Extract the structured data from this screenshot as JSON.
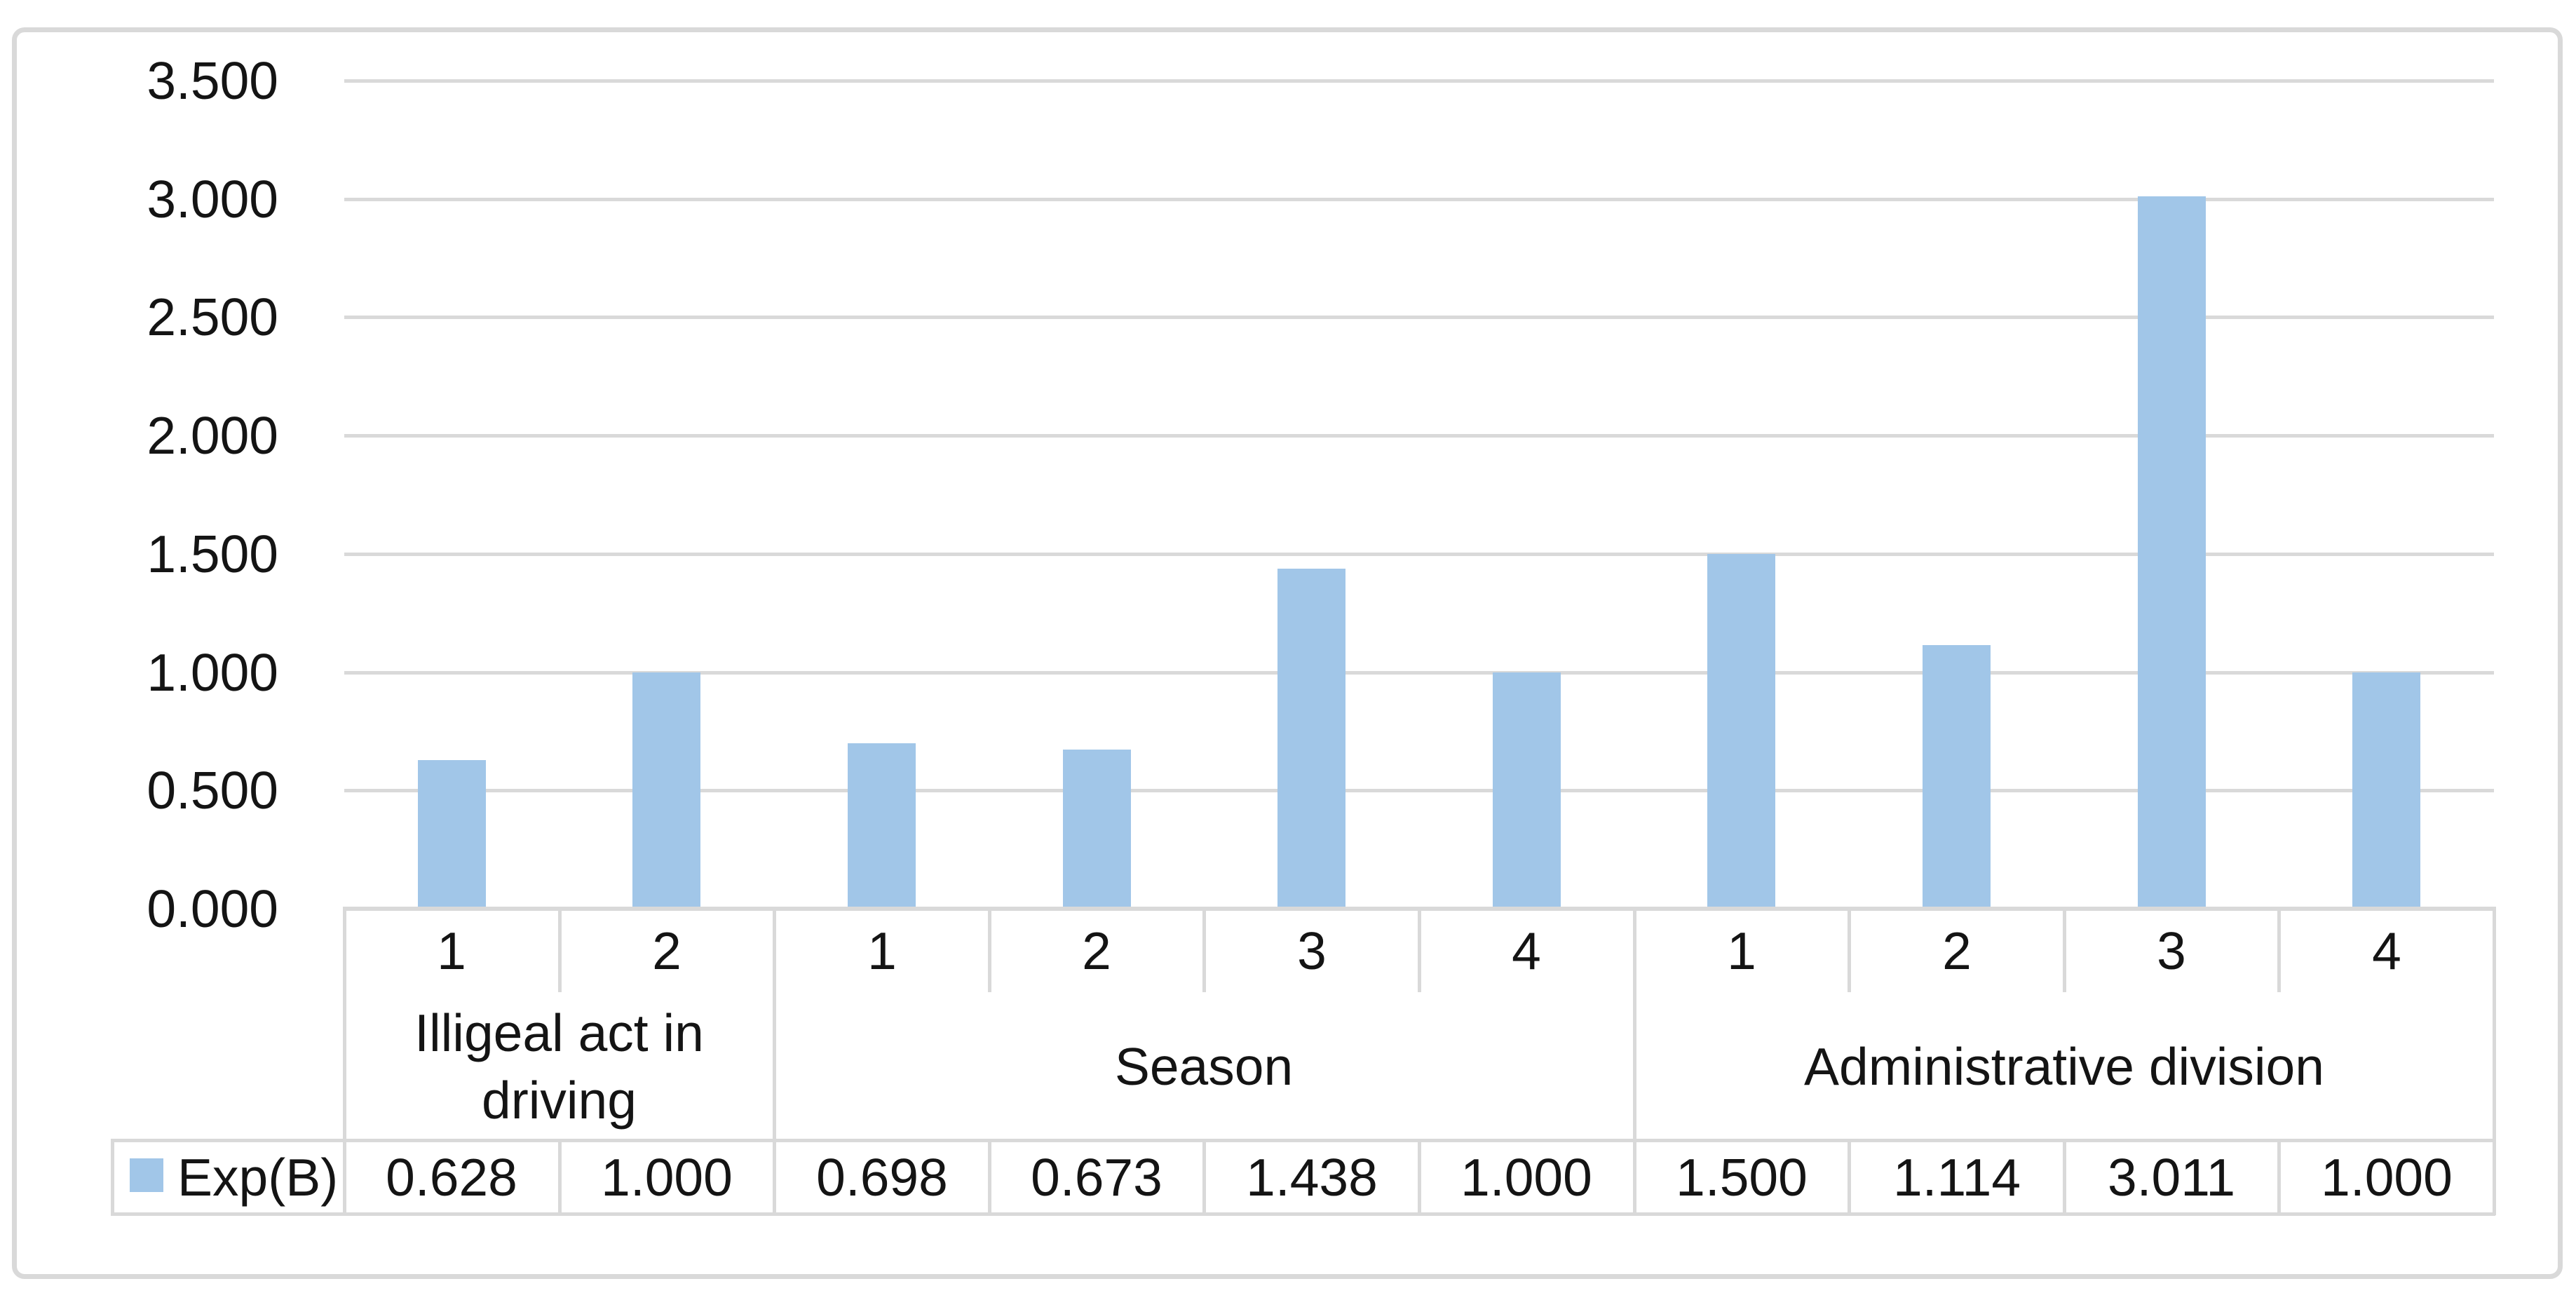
{
  "chart_data": {
    "type": "bar",
    "title": "",
    "xlabel": "",
    "ylabel": "",
    "series_name": "Exp(B)",
    "groups": [
      {
        "label": "Illigeal act in driving",
        "categories": [
          "1",
          "2"
        ],
        "values": [
          0.628,
          1.0
        ]
      },
      {
        "label": "Season",
        "categories": [
          "1",
          "2",
          "3",
          "4"
        ],
        "values": [
          0.698,
          0.673,
          1.438,
          1.0
        ]
      },
      {
        "label": "Administrative division",
        "categories": [
          "1",
          "2",
          "3",
          "4"
        ],
        "values": [
          1.5,
          1.114,
          3.011,
          1.0
        ]
      }
    ],
    "ylim": [
      0,
      3.5
    ],
    "ytick_step": 0.5,
    "ytick_labels": [
      "0.000",
      "0.500",
      "1.000",
      "1.500",
      "2.000",
      "2.500",
      "3.000",
      "3.500"
    ],
    "value_decimals": 3,
    "grid": true,
    "data_table_shown": true,
    "legend": {
      "label": "Exp(B)",
      "position": "table-left"
    }
  },
  "colors": {
    "bar": "#A1C6E8",
    "grid": "#D9D9D9",
    "table_line": "#D9D9D9",
    "outer_border": "#D9D9D9",
    "text": "#141414",
    "background": "#FFFFFF"
  }
}
